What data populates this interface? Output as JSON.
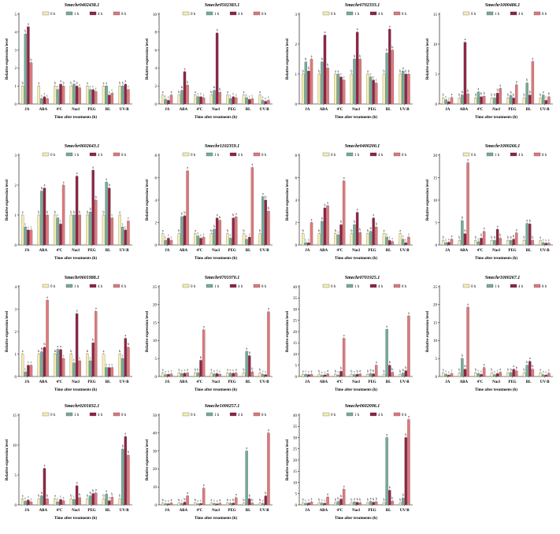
{
  "chart_data": [
    {
      "type": "bar",
      "title": "Smechr0402438.1",
      "xlabel": "Time after treatments (h)",
      "ylabel": "Relative expression level",
      "categories": [
        "JA",
        "ABA",
        "4ºC",
        "Nacl",
        "PEG",
        "BL",
        "UV-B"
      ],
      "ylim": [
        0,
        5
      ],
      "yticks": [
        0,
        1,
        2,
        3,
        4,
        5
      ],
      "series": [
        {
          "name": "0 h",
          "values": [
            1.0,
            1.0,
            1.0,
            1.0,
            1.0,
            1.0,
            1.0
          ]
        },
        {
          "name": "1 h",
          "values": [
            3.9,
            0.3,
            0.8,
            1.1,
            0.8,
            1.0,
            1.0
          ]
        },
        {
          "name": "4 h",
          "values": [
            4.3,
            0.4,
            1.1,
            1.0,
            0.8,
            0.5,
            1.1
          ]
        },
        {
          "name": "8 h",
          "values": [
            2.3,
            0.3,
            1.0,
            0.9,
            0.7,
            0.6,
            0.8
          ]
        }
      ]
    },
    {
      "type": "bar",
      "title": "Smechr0502383.1",
      "xlabel": "Time after treatments (h)",
      "ylabel": "Relative expression level",
      "categories": [
        "JA",
        "ABA",
        "4ºC",
        "Nacl",
        "PEG",
        "BL",
        "UV-B"
      ],
      "ylim": [
        0,
        10
      ],
      "yticks": [
        0,
        2,
        4,
        6,
        8,
        10
      ],
      "series": [
        {
          "name": "0 h",
          "values": [
            1.0,
            1.0,
            1.0,
            1.0,
            1.0,
            1.0,
            1.0
          ]
        },
        {
          "name": "1 h",
          "values": [
            0.5,
            1.5,
            0.8,
            1.5,
            0.6,
            0.7,
            0.4
          ]
        },
        {
          "name": "4 h",
          "values": [
            0.4,
            3.6,
            0.8,
            7.9,
            0.8,
            0.5,
            0.3
          ]
        },
        {
          "name": "8 h",
          "values": [
            1.0,
            2.1,
            0.7,
            1.3,
            0.7,
            0.6,
            0.4
          ]
        }
      ]
    },
    {
      "type": "bar",
      "title": "Smechr0702333.1",
      "xlabel": "Time after treatments (h)",
      "ylabel": "Relative expression level",
      "categories": [
        "JA",
        "ABA",
        "4ºC",
        "Nacl",
        "PEG",
        "BL",
        "UV-B"
      ],
      "ylim": [
        0,
        3
      ],
      "yticks": [
        0,
        1,
        2,
        3
      ],
      "series": [
        {
          "name": "0 h",
          "values": [
            1.0,
            1.0,
            1.0,
            1.0,
            1.0,
            1.0,
            1.0
          ]
        },
        {
          "name": "1 h",
          "values": [
            1.4,
            1.4,
            1.0,
            1.5,
            0.9,
            1.7,
            1.1
          ]
        },
        {
          "name": "4 h",
          "values": [
            1.1,
            2.3,
            0.9,
            2.4,
            0.8,
            2.5,
            1.0
          ]
        },
        {
          "name": "8 h",
          "values": [
            1.5,
            1.2,
            0.8,
            1.5,
            0.7,
            1.8,
            1.0
          ]
        }
      ]
    },
    {
      "type": "bar",
      "title": "Smechr1000486.1",
      "xlabel": "Time after treatments (h)",
      "ylabel": "Relative expression level",
      "categories": [
        "JA",
        "ABA",
        "4ºC",
        "Nacl",
        "PEG",
        "BL",
        "UV-B"
      ],
      "ylim": [
        0,
        15
      ],
      "yticks": [
        0,
        5,
        10,
        15
      ],
      "series": [
        {
          "name": "0 h",
          "values": [
            1.0,
            1.0,
            1.0,
            1.0,
            1.0,
            1.0,
            1.0
          ]
        },
        {
          "name": "1 h",
          "values": [
            0.7,
            1.5,
            2.0,
            1.0,
            1.4,
            3.5,
            1.5
          ]
        },
        {
          "name": "4 h",
          "values": [
            0.4,
            10.3,
            1.2,
            1.8,
            1.0,
            1.5,
            0.6
          ]
        },
        {
          "name": "8 h",
          "values": [
            1.1,
            1.7,
            1.3,
            2.6,
            3.2,
            7.1,
            1.2
          ]
        }
      ]
    },
    {
      "type": "bar",
      "title": "Smechr0602643.1",
      "xlabel": "Time after treatments (h)",
      "ylabel": "Relative expression level",
      "categories": [
        "JA",
        "ABA",
        "4ºC",
        "Nacl",
        "PEG",
        "BL",
        "UV-B"
      ],
      "ylim": [
        0,
        3
      ],
      "yticks": [
        0,
        1,
        2,
        3
      ],
      "series": [
        {
          "name": "0 h",
          "values": [
            1.0,
            1.0,
            1.0,
            1.0,
            1.0,
            1.0,
            1.0
          ]
        },
        {
          "name": "1 h",
          "values": [
            0.6,
            1.8,
            0.9,
            1.0,
            1.1,
            2.1,
            0.6
          ]
        },
        {
          "name": "4 h",
          "values": [
            0.5,
            1.9,
            0.7,
            2.3,
            2.5,
            1.9,
            0.5
          ]
        },
        {
          "name": "8 h",
          "values": [
            0.5,
            1.0,
            2.0,
            1.0,
            1.5,
            0.9,
            0.8
          ]
        }
      ]
    },
    {
      "type": "bar",
      "title": "Smechr1102359.1",
      "xlabel": "Time after treatments (h)",
      "ylabel": "Relative expression level",
      "categories": [
        "JA",
        "ABA",
        "4ºC",
        "Nacl",
        "PEG",
        "BL",
        "UV-B"
      ],
      "ylim": [
        0,
        8
      ],
      "yticks": [
        0,
        2,
        4,
        6,
        8
      ],
      "series": [
        {
          "name": "0 h",
          "values": [
            1.0,
            1.0,
            1.0,
            1.0,
            1.0,
            1.0,
            1.0
          ]
        },
        {
          "name": "1 h",
          "values": [
            0.4,
            2.5,
            0.8,
            1.4,
            0.6,
            0.5,
            4.3
          ]
        },
        {
          "name": "4 h",
          "values": [
            0.6,
            2.6,
            0.6,
            2.4,
            2.4,
            0.7,
            4.0
          ]
        },
        {
          "name": "8 h",
          "values": [
            0.4,
            6.6,
            0.7,
            2.2,
            2.5,
            6.9,
            3.0
          ]
        }
      ]
    },
    {
      "type": "bar",
      "title": "Smechr0400200.1",
      "xlabel": "Time after treatments (h)",
      "ylabel": "Relative expression level",
      "categories": [
        "JA",
        "ABA",
        "4ºC",
        "Nacl",
        "PEG",
        "BL",
        "UV-B"
      ],
      "ylim": [
        0,
        8
      ],
      "yticks": [
        0,
        2,
        4,
        6,
        8
      ],
      "series": [
        {
          "name": "0 h",
          "values": [
            1.0,
            1.0,
            1.0,
            1.0,
            1.0,
            1.0,
            1.0
          ]
        },
        {
          "name": "1 h",
          "values": [
            0.2,
            2.1,
            0.9,
            1.8,
            1.2,
            0.7,
            0.5
          ]
        },
        {
          "name": "4 h",
          "values": [
            0.2,
            3.3,
            1.8,
            2.9,
            2.4,
            0.4,
            0.2
          ]
        },
        {
          "name": "8 h",
          "values": [
            2.0,
            3.5,
            5.7,
            1.1,
            1.6,
            0.3,
            0.7
          ]
        }
      ]
    },
    {
      "type": "bar",
      "title": "Smechr1000266.1",
      "xlabel": "Time after treatments (h)",
      "ylabel": "Relative expression level",
      "categories": [
        "JA",
        "ABA",
        "4ºC",
        "Nacl",
        "PEG",
        "BL",
        "UV-B"
      ],
      "ylim": [
        0,
        20
      ],
      "yticks": [
        0,
        5,
        10,
        15,
        20
      ],
      "series": [
        {
          "name": "0 h",
          "values": [
            1.0,
            1.0,
            1.0,
            1.0,
            1.0,
            1.0,
            1.0
          ]
        },
        {
          "name": "1 h",
          "values": [
            0.5,
            5.4,
            0.7,
            1.0,
            1.0,
            4.8,
            0.5
          ]
        },
        {
          "name": "4 h",
          "values": [
            0.6,
            2.5,
            1.5,
            3.5,
            1.3,
            4.7,
            0.4
          ]
        },
        {
          "name": "8 h",
          "values": [
            1.3,
            18.3,
            3.0,
            1.5,
            2.7,
            1.0,
            0.4
          ]
        }
      ]
    },
    {
      "type": "bar",
      "title": "Smechr0601988.1",
      "xlabel": "Time after treatments (h)",
      "ylabel": "Relative expression level",
      "categories": [
        "JA",
        "ABA",
        "4ºC",
        "Nacl",
        "PEG",
        "BL",
        "UV-B"
      ],
      "ylim": [
        0,
        4
      ],
      "yticks": [
        0,
        1,
        2,
        3,
        4
      ],
      "series": [
        {
          "name": "0 h",
          "values": [
            1.0,
            1.0,
            1.0,
            1.0,
            1.0,
            1.0,
            1.0
          ]
        },
        {
          "name": "1 h",
          "values": [
            0.2,
            1.1,
            1.2,
            0.6,
            0.7,
            0.4,
            0.8
          ]
        },
        {
          "name": "4 h",
          "values": [
            0.5,
            1.3,
            1.2,
            2.8,
            1.5,
            0.4,
            1.7
          ]
        },
        {
          "name": "8 h",
          "values": [
            0.5,
            3.4,
            0.8,
            0.7,
            2.9,
            0.4,
            1.3
          ]
        }
      ]
    },
    {
      "type": "bar",
      "title": "Smechr0701970.1",
      "xlabel": "Time after treatments (h)",
      "ylabel": "Relative expression level",
      "categories": [
        "JA",
        "ABA",
        "4ºC",
        "Nacl",
        "PEG",
        "BL",
        "UV-B"
      ],
      "ylim": [
        0,
        25
      ],
      "yticks": [
        0,
        5,
        10,
        15,
        20,
        25
      ],
      "series": [
        {
          "name": "0 h",
          "values": [
            1.0,
            1.0,
            1.0,
            1.0,
            1.0,
            1.0,
            1.0
          ]
        },
        {
          "name": "1 h",
          "values": [
            0.5,
            0.8,
            1.0,
            0.7,
            0.9,
            7.0,
            0.6
          ]
        },
        {
          "name": "4 h",
          "values": [
            0.6,
            0.9,
            4.5,
            0.8,
            0.9,
            5.8,
            0.5
          ]
        },
        {
          "name": "8 h",
          "values": [
            0.7,
            1.0,
            13.0,
            0.6,
            1.0,
            1.3,
            18.0
          ]
        }
      ]
    },
    {
      "type": "bar",
      "title": "Smechr0701925.1",
      "xlabel": "Time after treatments (h)",
      "ylabel": "Relative expression level",
      "categories": [
        "JA",
        "ABA",
        "4ºC",
        "Nacl",
        "PEG",
        "BL",
        "UV-B"
      ],
      "ylim": [
        0,
        40
      ],
      "yticks": [
        0,
        5,
        10,
        15,
        20,
        25,
        30,
        35,
        40
      ],
      "series": [
        {
          "name": "0 h",
          "values": [
            1.0,
            1.0,
            1.0,
            1.0,
            1.0,
            1.0,
            1.0
          ]
        },
        {
          "name": "1 h",
          "values": [
            0.9,
            0.5,
            0.6,
            0.8,
            1.3,
            21.0,
            1.5
          ]
        },
        {
          "name": "4 h",
          "values": [
            0.8,
            0.7,
            2.3,
            1.0,
            1.2,
            5.0,
            2.6
          ]
        },
        {
          "name": "8 h",
          "values": [
            1.0,
            1.2,
            17.0,
            1.2,
            5.0,
            1.8,
            27.0
          ]
        }
      ]
    },
    {
      "type": "bar",
      "title": "Smechr1000267.1",
      "xlabel": "Time after treatments (h)",
      "ylabel": "Relative expression level",
      "categories": [
        "JA",
        "ABA",
        "4ºC",
        "Nacl",
        "PEG",
        "BL",
        "UV-B"
      ],
      "ylim": [
        0,
        25
      ],
      "yticks": [
        0,
        5,
        10,
        15,
        20,
        25
      ],
      "series": [
        {
          "name": "0 h",
          "values": [
            1.0,
            1.0,
            1.0,
            1.0,
            1.0,
            1.0,
            1.0
          ]
        },
        {
          "name": "1 h",
          "values": [
            0.6,
            5.0,
            0.8,
            0.5,
            1.1,
            3.1,
            0.5
          ]
        },
        {
          "name": "4 h",
          "values": [
            0.4,
            2.0,
            0.6,
            0.8,
            2.0,
            4.2,
            0.4
          ]
        },
        {
          "name": "8 h",
          "values": [
            0.8,
            19.3,
            2.5,
            1.2,
            1.6,
            2.0,
            0.9
          ]
        }
      ]
    },
    {
      "type": "bar",
      "title": "Smechr0201832.1",
      "xlabel": "Time after treatments (h)",
      "ylabel": "Relative expression level",
      "categories": [
        "JA",
        "ABA",
        "4ºC",
        "Nacl",
        "PEG",
        "BL",
        "UV-B"
      ],
      "ylim": [
        0,
        15
      ],
      "yticks": [
        0,
        5,
        10,
        15
      ],
      "series": [
        {
          "name": "0 h",
          "values": [
            1.0,
            1.0,
            1.0,
            1.0,
            1.0,
            1.0,
            1.0
          ]
        },
        {
          "name": "1 h",
          "values": [
            0.6,
            1.5,
            0.5,
            0.9,
            1.5,
            1.8,
            9.3
          ]
        },
        {
          "name": "4 h",
          "values": [
            0.8,
            6.1,
            0.9,
            3.2,
            1.9,
            0.7,
            11.4
          ]
        },
        {
          "name": "8 h",
          "values": [
            0.5,
            1.0,
            0.7,
            1.2,
            2.0,
            1.3,
            8.3
          ]
        }
      ]
    },
    {
      "type": "bar",
      "title": "Smechr1000257.1",
      "xlabel": "Time after treatments (h)",
      "ylabel": "Relative expression level",
      "categories": [
        "JA",
        "ABA",
        "4ºC",
        "Nacl",
        "PEG",
        "BL",
        "UV-B"
      ],
      "ylim": [
        0,
        50
      ],
      "yticks": [
        0,
        10,
        20,
        30,
        40,
        50
      ],
      "series": [
        {
          "name": "0 h",
          "values": [
            1.0,
            1.0,
            1.0,
            1.0,
            1.0,
            1.0,
            1.0
          ]
        },
        {
          "name": "1 h",
          "values": [
            0.6,
            0.7,
            0.5,
            0.8,
            0.9,
            30.0,
            0.7
          ]
        },
        {
          "name": "4 h",
          "values": [
            0.6,
            1.5,
            0.8,
            0.5,
            1.0,
            3.4,
            5.0
          ]
        },
        {
          "name": "8 h",
          "values": [
            1.1,
            5.0,
            9.3,
            1.0,
            4.0,
            1.0,
            40.0
          ]
        }
      ]
    },
    {
      "type": "bar",
      "title": "Smechr0602096.1",
      "xlabel": "Time after treatments (h)",
      "ylabel": "Relative expression level",
      "categories": [
        "JA",
        "ABA",
        "4ºC",
        "Nacl",
        "PEG",
        "BL",
        "UV-B"
      ],
      "ylim": [
        0,
        40
      ],
      "yticks": [
        0,
        5,
        10,
        15,
        20,
        25,
        30,
        35,
        40
      ],
      "series": [
        {
          "name": "0 h",
          "values": [
            1.0,
            1.0,
            1.0,
            1.0,
            1.0,
            1.0,
            1.0
          ]
        },
        {
          "name": "1 h",
          "values": [
            0.6,
            0.8,
            1.5,
            1.3,
            1.5,
            30.0,
            3.0
          ]
        },
        {
          "name": "4 h",
          "values": [
            0.8,
            0.7,
            2.6,
            1.1,
            1.2,
            6.5,
            30.0
          ]
        },
        {
          "name": "8 h",
          "values": [
            1.3,
            3.5,
            7.0,
            1.0,
            1.4,
            1.6,
            38.0
          ]
        }
      ]
    }
  ],
  "colors": {
    "0 h": "#f4eeb1",
    "1 h": "#76ab9a",
    "4 h": "#8f2442",
    "8 h": "#e0787b",
    "axis": "#000000"
  },
  "significance": [
    "a",
    "b",
    "c"
  ]
}
